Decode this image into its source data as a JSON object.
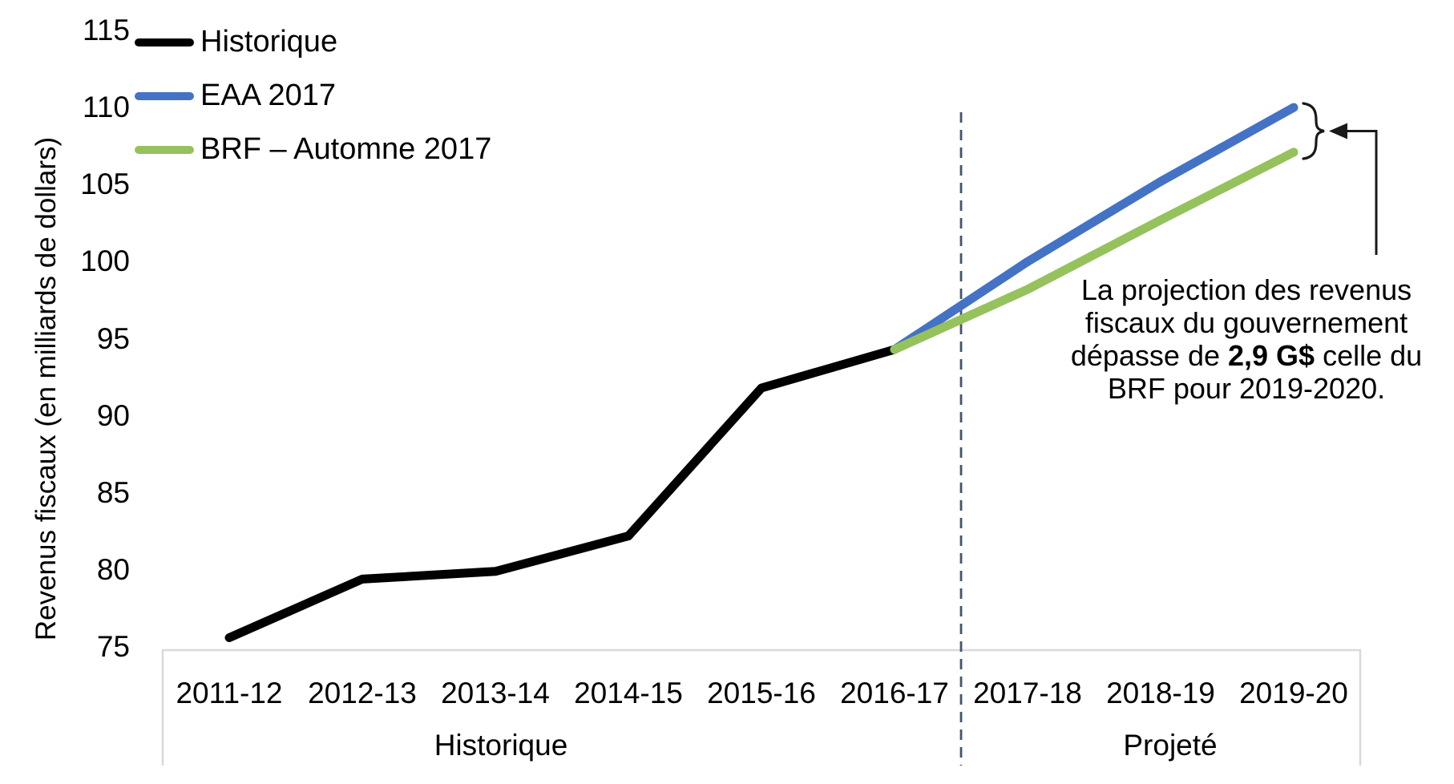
{
  "chart_data": {
    "type": "line",
    "title": "",
    "xlabel": "",
    "ylabel": "Revenus fiscaux (en milliards de dollars)",
    "ylim": [
      75,
      115
    ],
    "yticks": [
      75,
      80,
      85,
      90,
      95,
      100,
      105,
      110,
      115
    ],
    "grid": false,
    "legend_position": "top-left",
    "categories": [
      "2011-12",
      "2012-13",
      "2013-14",
      "2014-15",
      "2015-16",
      "2016-17",
      "2017-18",
      "2018-19",
      "2019-20"
    ],
    "series": [
      {
        "name": "Historique",
        "color": "#000000",
        "values": [
          75.6,
          79.4,
          79.9,
          82.2,
          91.8,
          94.3,
          null,
          null,
          null
        ]
      },
      {
        "name": "EAA 2017",
        "color": "#4472C4",
        "values": [
          null,
          null,
          null,
          null,
          null,
          94.3,
          100.0,
          105.2,
          110.0
        ]
      },
      {
        "name": "BRF – Automne 2017",
        "color": "#95C25C",
        "values": [
          null,
          null,
          null,
          null,
          null,
          94.3,
          98.2,
          102.7,
          107.1
        ]
      }
    ],
    "x_group_labels": [
      {
        "label": "Historique",
        "from_index": 0,
        "to_index": 5
      },
      {
        "label": "Projeté",
        "from_index": 6,
        "to_index": 8
      }
    ],
    "separator_after_index": 5,
    "colors": {
      "separator": "#44546A",
      "axis_box": "#D9D9D9",
      "text": "#000000"
    },
    "annotation": {
      "line1": "La projection des revenus",
      "line2": "fiscaux du gouvernement",
      "line3_prefix": "dépasse de ",
      "line3_bold": "2,9 G$",
      "line3_suffix": " celle du",
      "line4": "BRF pour 2019-2020.",
      "gap_value": "2,9 G$",
      "gap_year": "2019-2020"
    }
  }
}
